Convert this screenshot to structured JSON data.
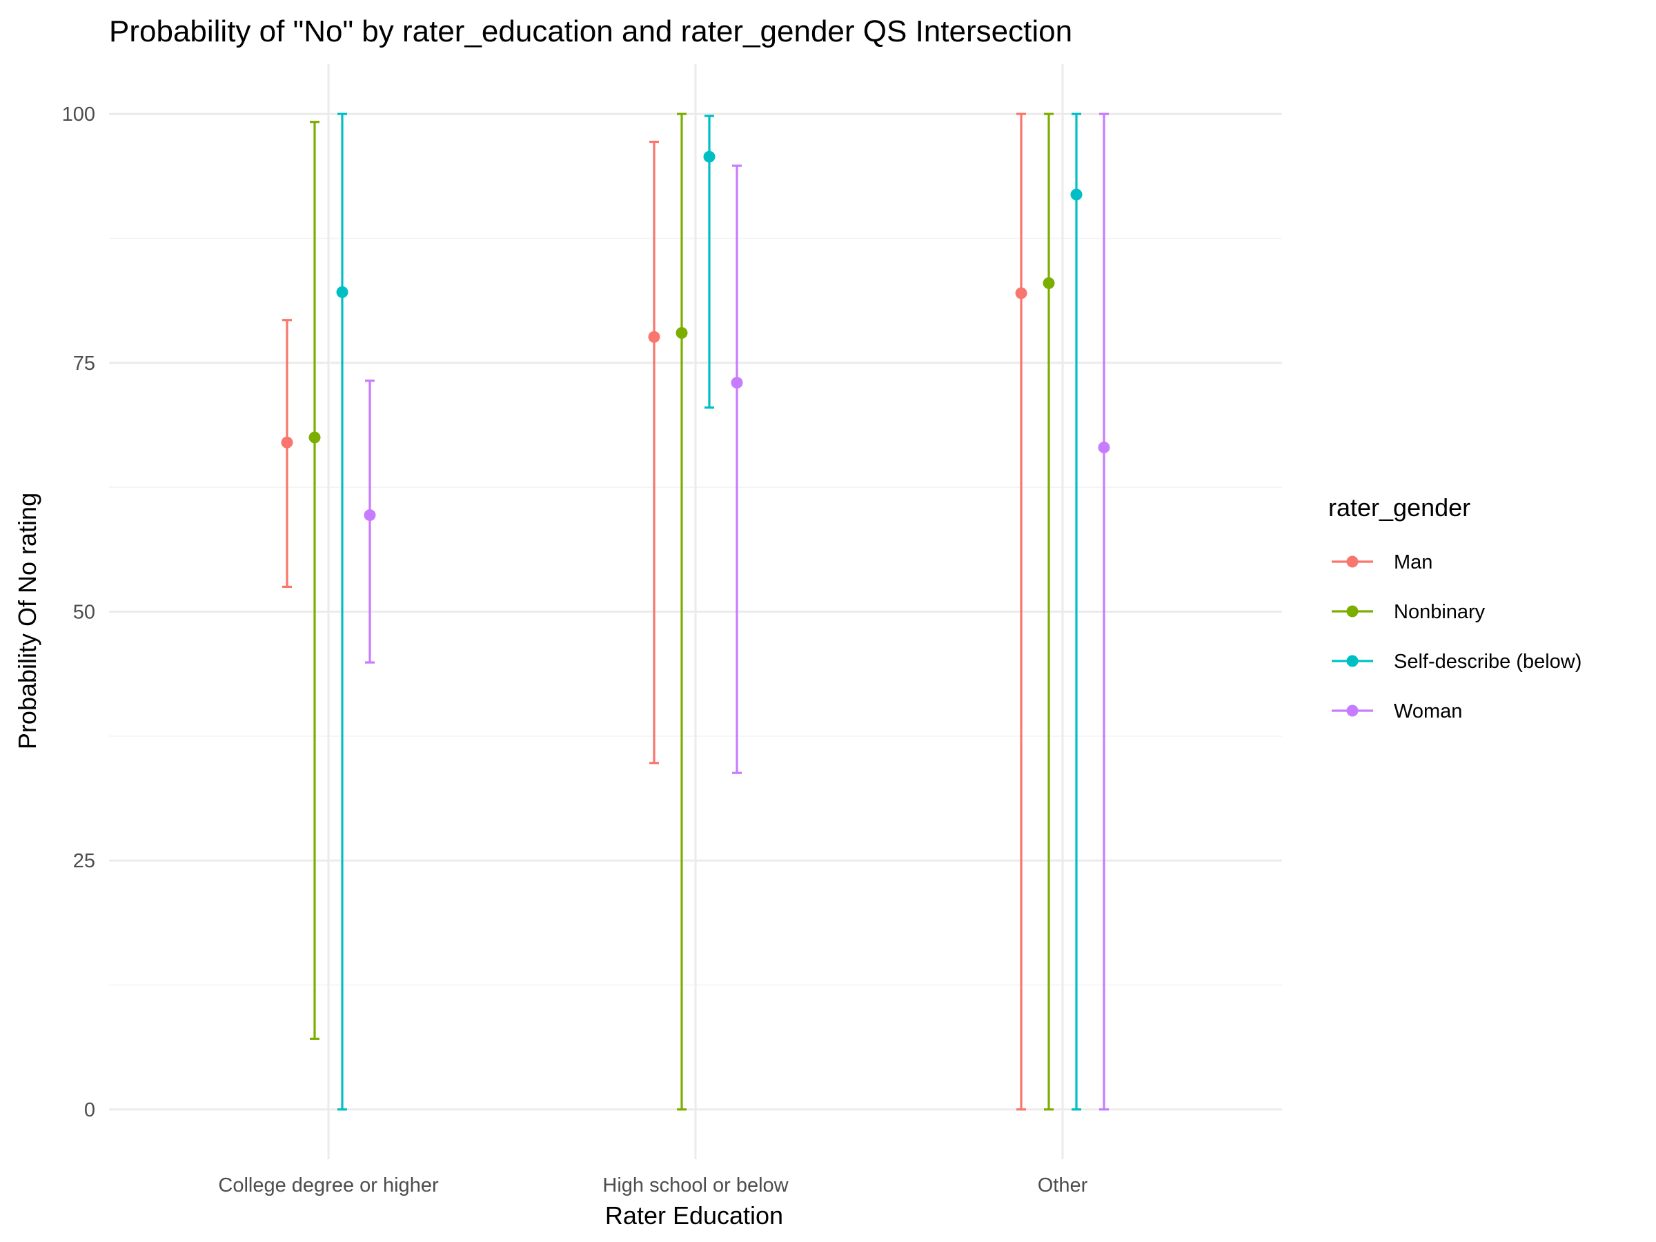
{
  "chart_data": {
    "type": "errorbar",
    "title": "Probability of \"No\" by rater_education and  rater_gender  QS Intersection",
    "xlabel": "Rater Education",
    "ylabel": "Probability Of No rating",
    "categories": [
      "College degree or higher",
      "High school or below",
      "Other"
    ],
    "ylim": [
      -5,
      105
    ],
    "yticks": [
      "0",
      "25",
      "50",
      "75",
      "100"
    ],
    "grid": true,
    "legend": {
      "title": "rater_gender",
      "placement": "right"
    },
    "series": [
      {
        "name": "Man",
        "color": "#F8766D",
        "points": [
          {
            "category": "College degree or higher",
            "value": 67.0,
            "lower": 52.5,
            "upper": 79.3
          },
          {
            "category": "High school or below",
            "value": 77.6,
            "lower": 34.8,
            "upper": 97.2
          },
          {
            "category": "Other",
            "value": 82.0,
            "lower": 0,
            "upper": 100
          }
        ]
      },
      {
        "name": "Nonbinary",
        "color": "#7CAE00",
        "points": [
          {
            "category": "College degree or higher",
            "value": 67.5,
            "lower": 7.1,
            "upper": 99.2
          },
          {
            "category": "High school or below",
            "value": 78.0,
            "lower": 0,
            "upper": 100
          },
          {
            "category": "Other",
            "value": 83.0,
            "lower": 0,
            "upper": 100
          }
        ]
      },
      {
        "name": "Self-describe (below)",
        "color": "#00BFC4",
        "points": [
          {
            "category": "College degree or higher",
            "value": 82.1,
            "lower": 0,
            "upper": 100
          },
          {
            "category": "High school or below",
            "value": 95.7,
            "lower": 70.5,
            "upper": 99.8
          },
          {
            "category": "Other",
            "value": 91.9,
            "lower": 0,
            "upper": 100
          }
        ]
      },
      {
        "name": "Woman",
        "color": "#C77CFF",
        "points": [
          {
            "category": "College degree or higher",
            "value": 59.7,
            "lower": 44.9,
            "upper": 73.2
          },
          {
            "category": "High school or below",
            "value": 73.0,
            "lower": 33.8,
            "upper": 94.8
          },
          {
            "category": "Other",
            "value": 66.5,
            "lower": 0,
            "upper": 100
          }
        ]
      }
    ]
  }
}
